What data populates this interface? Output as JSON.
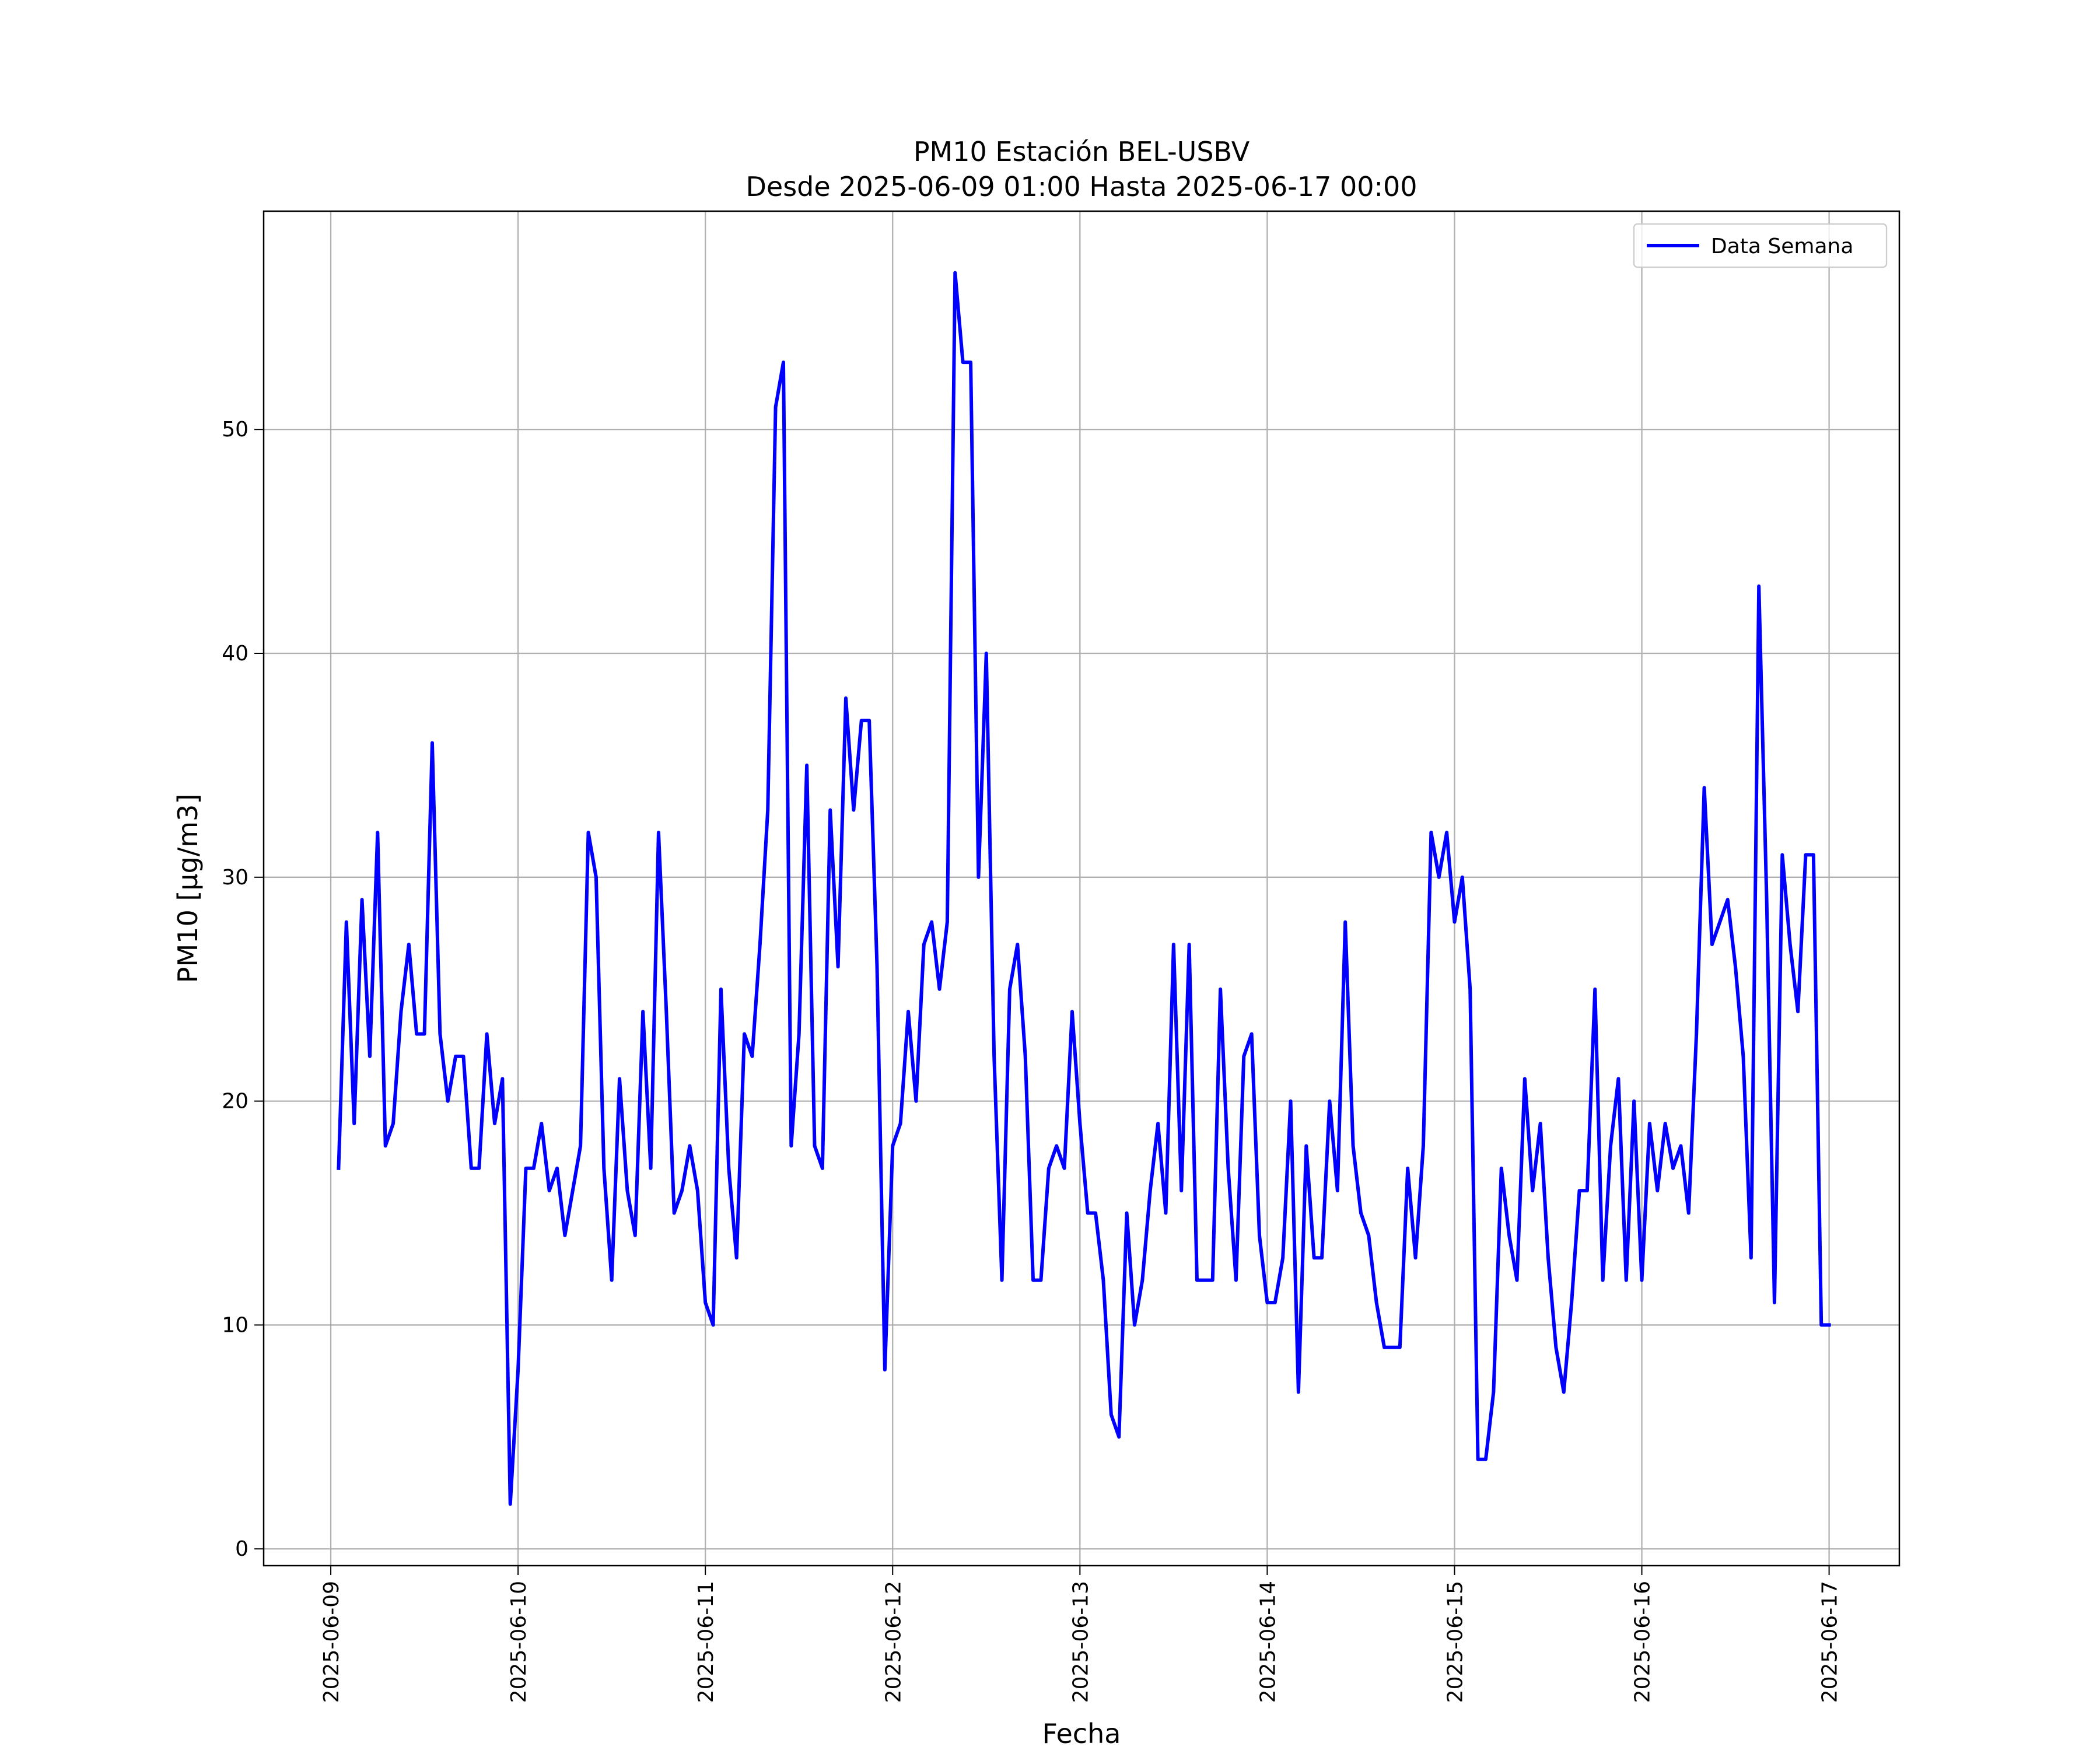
{
  "chart_data": {
    "type": "line",
    "title": "PM10 Estación BEL-USBV",
    "subtitle": "Desde 2025-06-09 01:00 Hasta 2025-06-17 00:00",
    "xlabel": "Fecha",
    "ylabel": "PM10 [μg/m3]",
    "x": [
      "2025-06-09 01:00",
      "2025-06-09 02:00",
      "2025-06-09 03:00",
      "2025-06-09 04:00",
      "2025-06-09 05:00",
      "2025-06-09 06:00",
      "2025-06-09 07:00",
      "2025-06-09 08:00",
      "2025-06-09 09:00",
      "2025-06-09 10:00",
      "2025-06-09 11:00",
      "2025-06-09 12:00",
      "2025-06-09 13:00",
      "2025-06-09 14:00",
      "2025-06-09 15:00",
      "2025-06-09 16:00",
      "2025-06-09 17:00",
      "2025-06-09 18:00",
      "2025-06-09 19:00",
      "2025-06-09 20:00",
      "2025-06-09 21:00",
      "2025-06-09 22:00",
      "2025-06-09 23:00",
      "2025-06-10 00:00",
      "2025-06-10 01:00",
      "2025-06-10 02:00",
      "2025-06-10 03:00",
      "2025-06-10 04:00",
      "2025-06-10 05:00",
      "2025-06-10 06:00",
      "2025-06-10 07:00",
      "2025-06-10 08:00",
      "2025-06-10 09:00",
      "2025-06-10 10:00",
      "2025-06-10 11:00",
      "2025-06-10 12:00",
      "2025-06-10 13:00",
      "2025-06-10 14:00",
      "2025-06-10 15:00",
      "2025-06-10 16:00",
      "2025-06-10 17:00",
      "2025-06-10 18:00",
      "2025-06-10 19:00",
      "2025-06-10 20:00",
      "2025-06-10 21:00",
      "2025-06-10 22:00",
      "2025-06-10 23:00",
      "2025-06-11 00:00",
      "2025-06-11 01:00",
      "2025-06-11 02:00",
      "2025-06-11 03:00",
      "2025-06-11 04:00",
      "2025-06-11 05:00",
      "2025-06-11 06:00",
      "2025-06-11 07:00",
      "2025-06-11 08:00",
      "2025-06-11 09:00",
      "2025-06-11 10:00",
      "2025-06-11 11:00",
      "2025-06-11 12:00",
      "2025-06-11 13:00",
      "2025-06-11 14:00",
      "2025-06-11 15:00",
      "2025-06-11 16:00",
      "2025-06-11 17:00",
      "2025-06-11 18:00",
      "2025-06-11 19:00",
      "2025-06-11 20:00",
      "2025-06-11 21:00",
      "2025-06-11 22:00",
      "2025-06-11 23:00",
      "2025-06-12 00:00",
      "2025-06-12 01:00",
      "2025-06-12 02:00",
      "2025-06-12 03:00",
      "2025-06-12 04:00",
      "2025-06-12 05:00",
      "2025-06-12 06:00",
      "2025-06-12 07:00",
      "2025-06-12 08:00",
      "2025-06-12 09:00",
      "2025-06-12 10:00",
      "2025-06-12 11:00",
      "2025-06-12 12:00",
      "2025-06-12 13:00",
      "2025-06-12 14:00",
      "2025-06-12 15:00",
      "2025-06-12 16:00",
      "2025-06-12 17:00",
      "2025-06-12 18:00",
      "2025-06-12 19:00",
      "2025-06-12 20:00",
      "2025-06-12 21:00",
      "2025-06-12 22:00",
      "2025-06-12 23:00",
      "2025-06-13 00:00",
      "2025-06-13 01:00",
      "2025-06-13 02:00",
      "2025-06-13 03:00",
      "2025-06-13 04:00",
      "2025-06-13 05:00",
      "2025-06-13 06:00",
      "2025-06-13 07:00",
      "2025-06-13 08:00",
      "2025-06-13 09:00",
      "2025-06-13 10:00",
      "2025-06-13 11:00",
      "2025-06-13 12:00",
      "2025-06-13 13:00",
      "2025-06-13 14:00",
      "2025-06-13 15:00",
      "2025-06-13 16:00",
      "2025-06-13 17:00",
      "2025-06-13 18:00",
      "2025-06-13 19:00",
      "2025-06-13 20:00",
      "2025-06-13 21:00",
      "2025-06-13 22:00",
      "2025-06-13 23:00",
      "2025-06-14 00:00",
      "2025-06-14 01:00",
      "2025-06-14 02:00",
      "2025-06-14 03:00",
      "2025-06-14 04:00",
      "2025-06-14 05:00",
      "2025-06-14 06:00",
      "2025-06-14 07:00",
      "2025-06-14 08:00",
      "2025-06-14 09:00",
      "2025-06-14 10:00",
      "2025-06-14 11:00",
      "2025-06-14 12:00",
      "2025-06-14 13:00",
      "2025-06-14 14:00",
      "2025-06-14 15:00",
      "2025-06-14 16:00",
      "2025-06-14 17:00",
      "2025-06-14 18:00",
      "2025-06-14 19:00",
      "2025-06-14 20:00",
      "2025-06-14 21:00",
      "2025-06-14 22:00",
      "2025-06-14 23:00",
      "2025-06-15 00:00",
      "2025-06-15 01:00",
      "2025-06-15 02:00",
      "2025-06-15 03:00",
      "2025-06-15 04:00",
      "2025-06-15 05:00",
      "2025-06-15 06:00",
      "2025-06-15 07:00",
      "2025-06-15 08:00",
      "2025-06-15 09:00",
      "2025-06-15 10:00",
      "2025-06-15 11:00",
      "2025-06-15 12:00",
      "2025-06-15 13:00",
      "2025-06-15 14:00",
      "2025-06-15 15:00",
      "2025-06-15 16:00",
      "2025-06-15 17:00",
      "2025-06-15 18:00",
      "2025-06-15 19:00",
      "2025-06-15 20:00",
      "2025-06-15 21:00",
      "2025-06-15 22:00",
      "2025-06-15 23:00",
      "2025-06-16 00:00",
      "2025-06-16 01:00",
      "2025-06-16 02:00",
      "2025-06-16 03:00",
      "2025-06-16 04:00",
      "2025-06-16 05:00",
      "2025-06-16 06:00",
      "2025-06-16 07:00",
      "2025-06-16 08:00",
      "2025-06-16 09:00",
      "2025-06-16 10:00",
      "2025-06-16 11:00",
      "2025-06-16 12:00",
      "2025-06-16 13:00",
      "2025-06-16 14:00",
      "2025-06-16 15:00",
      "2025-06-16 16:00",
      "2025-06-16 17:00",
      "2025-06-16 18:00",
      "2025-06-16 19:00",
      "2025-06-16 20:00",
      "2025-06-16 21:00",
      "2025-06-16 22:00",
      "2025-06-16 23:00",
      "2025-06-17 00:00"
    ],
    "series": [
      {
        "name": "Data Semana",
        "color": "#0000ff",
        "values": [
          17,
          28,
          19,
          29,
          22,
          32,
          18,
          19,
          24,
          27,
          23,
          23,
          36,
          23,
          20,
          22,
          22,
          17,
          17,
          23,
          19,
          21,
          2,
          8,
          17,
          17,
          19,
          16,
          17,
          14,
          16,
          18,
          32,
          30,
          17,
          12,
          21,
          16,
          14,
          24,
          17,
          32,
          24,
          15,
          16,
          18,
          16,
          11,
          10,
          25,
          17,
          13,
          23,
          22,
          27,
          33,
          51,
          53,
          18,
          23,
          35,
          18,
          17,
          33,
          26,
          38,
          33,
          37,
          37,
          26,
          8,
          18,
          19,
          24,
          20,
          27,
          28,
          25,
          28,
          57,
          53,
          53,
          30,
          40,
          22,
          12,
          25,
          27,
          22,
          12,
          12,
          17,
          18,
          17,
          24,
          19,
          15,
          15,
          12,
          6,
          5,
          15,
          10,
          12,
          16,
          19,
          15,
          27,
          16,
          27,
          12,
          12,
          12,
          25,
          17,
          12,
          22,
          23,
          14,
          11,
          11,
          13,
          20,
          7,
          18,
          13,
          13,
          20,
          16,
          28,
          18,
          15,
          14,
          11,
          9,
          9,
          9,
          17,
          13,
          18,
          32,
          30,
          32,
          28,
          30,
          25,
          4,
          4,
          7,
          17,
          14,
          12,
          21,
          16,
          19,
          13,
          9,
          7,
          11,
          16,
          16,
          25,
          12,
          18,
          21,
          12,
          20,
          12,
          19,
          16,
          19,
          17,
          18,
          15,
          23,
          34,
          27,
          28,
          29,
          26,
          22,
          13,
          43,
          29,
          11,
          31,
          27,
          24,
          31,
          31,
          10,
          10
        ]
      }
    ],
    "xlim": [
      "2025-06-08 15:24",
      "2025-06-17 09:00"
    ],
    "xticks": [
      "2025-06-09",
      "2025-06-10",
      "2025-06-11",
      "2025-06-12",
      "2025-06-13",
      "2025-06-14",
      "2025-06-15",
      "2025-06-16",
      "2025-06-17"
    ],
    "ylim": [
      -0.75,
      59.75
    ],
    "yticks": [
      0,
      10,
      20,
      30,
      40,
      50
    ],
    "grid": true,
    "legend": "upper right"
  }
}
